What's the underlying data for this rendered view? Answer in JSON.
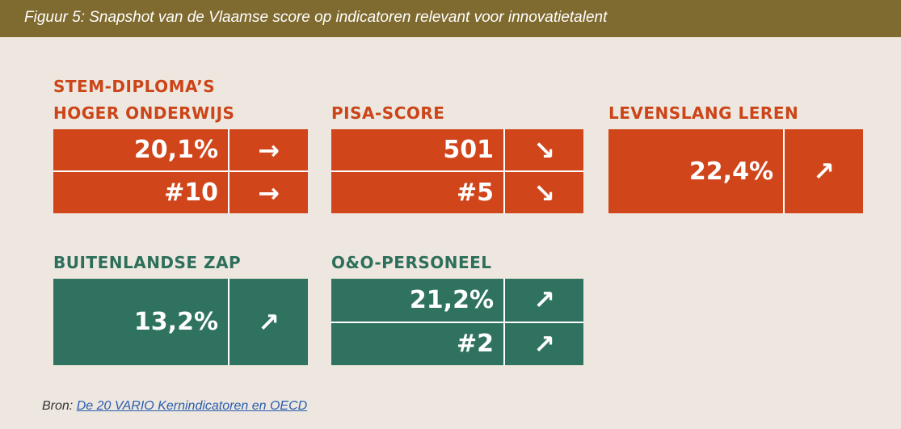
{
  "header": {
    "title": "Figuur 5: Snapshot van de Vlaamse score op indicatoren relevant voor innovatietalent"
  },
  "panels": [
    {
      "title": [
        "STEM-DIPLOMA’S",
        "HOGER ONDERWIJS"
      ],
      "rows": [
        {
          "value": "20,1%",
          "trend": "→"
        },
        {
          "value": "#10",
          "trend": "→"
        }
      ]
    },
    {
      "title": [
        "PISA-SCORE"
      ],
      "rows": [
        {
          "value": "501",
          "trend": "↘"
        },
        {
          "value": "#5",
          "trend": "↘"
        }
      ]
    },
    {
      "title": [
        "LEVENSLANG LEREN"
      ],
      "rows": [
        {
          "value": "22,4%",
          "trend": "↗"
        }
      ]
    },
    {
      "title": [
        "BUITENLANDSE ZAP"
      ],
      "rows": [
        {
          "value": "13,2%",
          "trend": "↗"
        }
      ]
    },
    {
      "title": [
        "O&O-PERSONEEL"
      ],
      "rows": [
        {
          "value": "21,2%",
          "trend": "↗"
        },
        {
          "value": "#2",
          "trend": "↗"
        }
      ]
    }
  ],
  "source": {
    "label": "Bron:",
    "link": "De 20 VARIO Kernindicatoren en OECD"
  }
}
